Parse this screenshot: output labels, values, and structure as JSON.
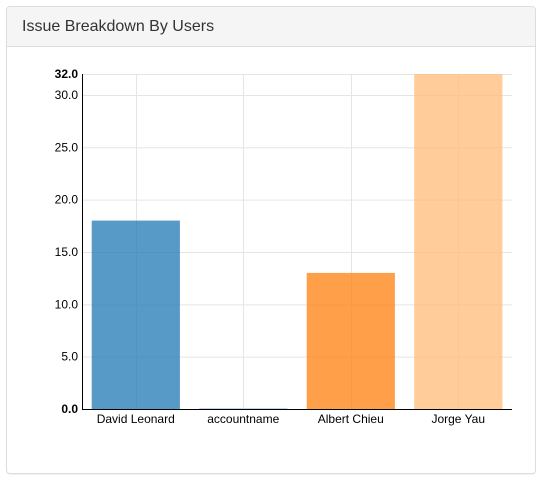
{
  "panel": {
    "title": "Issue Breakdown By Users"
  },
  "chart_data": {
    "type": "bar",
    "categories": [
      "David Leonard",
      "accountname",
      "Albert Chieu",
      "Jorge Yau"
    ],
    "values": [
      18,
      0,
      13,
      32
    ],
    "colors": [
      "#1f77b4",
      "#aec7e8",
      "#ff7f0e",
      "#ffbb78"
    ],
    "yticks": [
      0,
      5,
      10,
      15,
      20,
      25,
      30
    ],
    "ytick_labels": [
      "0.0",
      "5.0",
      "10.0",
      "15.0",
      "20.0",
      "25.0",
      "30.0"
    ],
    "ymax_label": "32.0",
    "ylim": [
      0,
      32
    ],
    "grid": true,
    "title": "",
    "xlabel": "",
    "ylabel": ""
  }
}
